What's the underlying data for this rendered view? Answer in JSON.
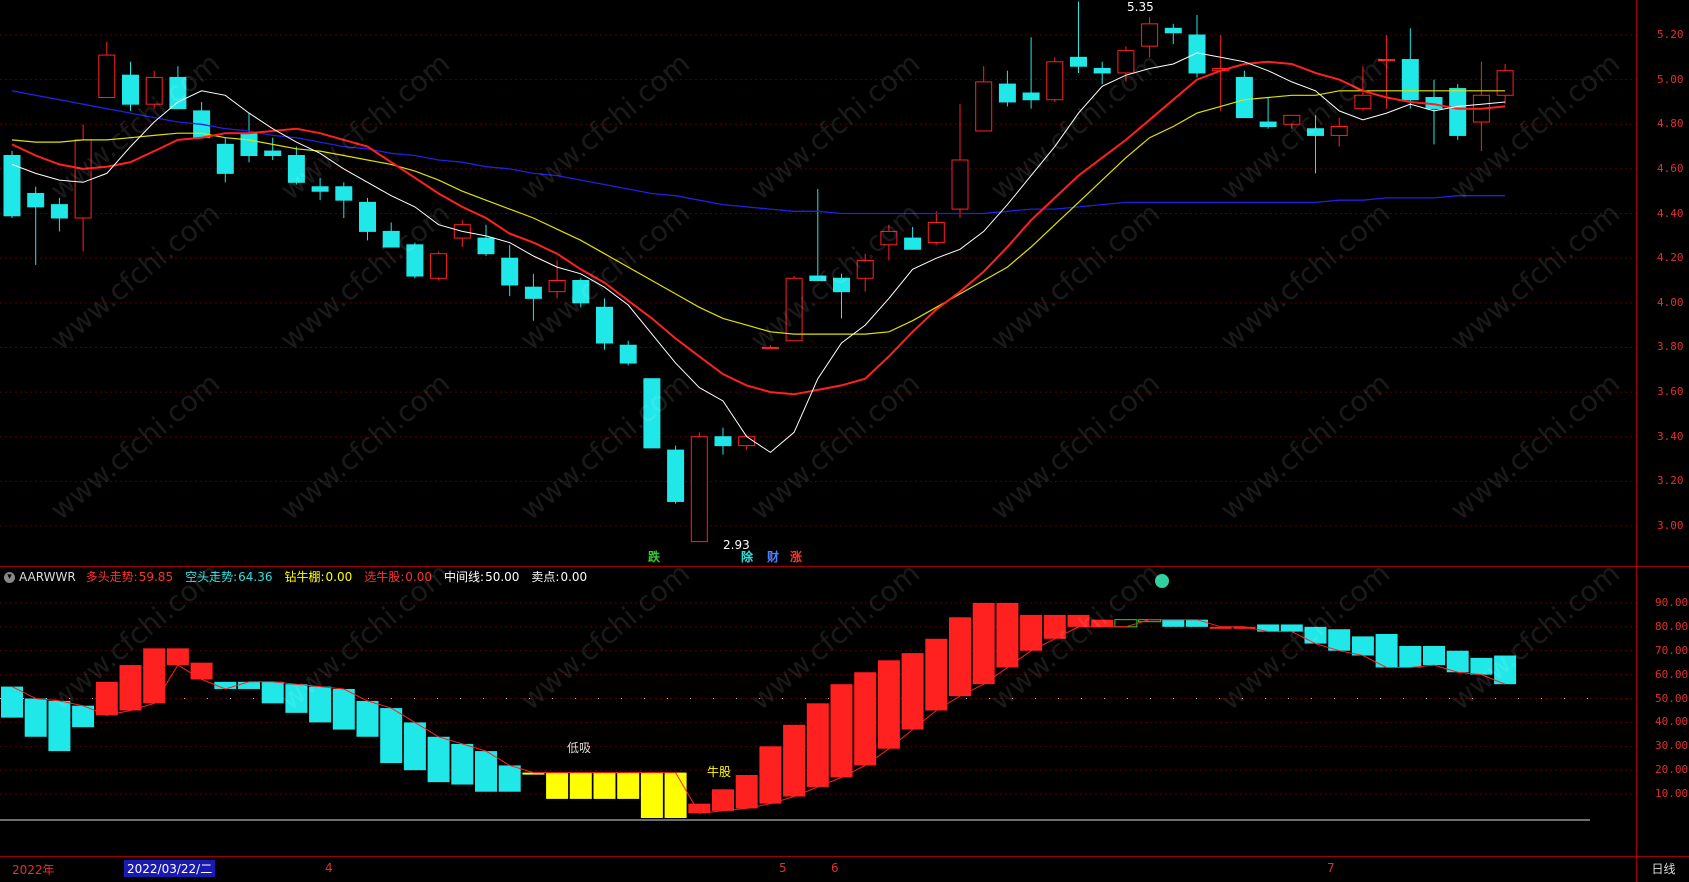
{
  "indicator": {
    "name": "AARWWR",
    "fields": [
      {
        "label": "多头走势:",
        "value": "59.85",
        "color": "#ff3030"
      },
      {
        "label": "空头走势:",
        "value": "64.36",
        "color": "#30e0e0"
      },
      {
        "label": "钻牛棚:",
        "value": "0.00",
        "color": "#ffff00"
      },
      {
        "label": "选牛股:",
        "value": "0.00",
        "color": "#ff3030"
      },
      {
        "label": "中间线:",
        "value": "50.00",
        "color": "#ffffff"
      },
      {
        "label": "卖点:",
        "value": "0.00",
        "color": "#ffffff"
      }
    ],
    "notes": {
      "low_buy": "低吸",
      "bull_stock": "牛股"
    }
  },
  "price_axis": [
    "5.20",
    "5.00",
    "4.80",
    "4.60",
    "4.40",
    "4.20",
    "4.00",
    "3.80",
    "3.60",
    "3.40",
    "3.20",
    "3.00"
  ],
  "indicator_axis": [
    "90.00",
    "80.00",
    "70.00",
    "60.00",
    "50.00",
    "40.00",
    "30.00",
    "20.00",
    "10.00"
  ],
  "high_label": "5.35",
  "low_label": "2.93",
  "markers": [
    {
      "text": "跌",
      "color": "#30d030"
    },
    {
      "text": "除",
      "color": "#30e0e0"
    },
    {
      "text": "财",
      "color": "#5080ff"
    },
    {
      "text": "涨",
      "color": "#ff3030"
    }
  ],
  "time_axis": {
    "labels": [
      "2022年",
      "4",
      "5",
      "6",
      "7"
    ],
    "cursor_date": "2022/03/22/二",
    "period": "日线"
  },
  "watermark": "www.cfchi.com",
  "colors": {
    "up": "#ff2020",
    "down": "#20e8e8",
    "ma5": "#ffffff",
    "ma10": "#ff2020",
    "ma20": "#e0e000",
    "ma60": "#2020e0",
    "yellow_bar": "#ffff00"
  },
  "chart_data": {
    "type": "candlestick",
    "candles": [
      [
        4.66,
        4.39,
        4.68,
        4.38
      ],
      [
        4.49,
        4.43,
        4.52,
        4.17
      ],
      [
        4.44,
        4.38,
        4.47,
        4.32
      ],
      [
        4.38,
        4.73,
        4.8,
        4.23
      ],
      [
        4.92,
        5.11,
        5.17,
        4.92
      ],
      [
        5.02,
        4.89,
        5.08,
        4.86
      ],
      [
        4.89,
        5.01,
        5.04,
        4.87
      ],
      [
        5.01,
        4.87,
        5.06,
        4.87
      ],
      [
        4.86,
        4.74,
        4.9,
        4.74
      ],
      [
        4.71,
        4.58,
        4.74,
        4.54
      ],
      [
        4.76,
        4.66,
        4.85,
        4.63
      ],
      [
        4.68,
        4.66,
        4.74,
        4.64
      ],
      [
        4.66,
        4.54,
        4.7,
        4.53
      ],
      [
        4.52,
        4.5,
        4.56,
        4.46
      ],
      [
        4.52,
        4.46,
        4.54,
        4.38
      ],
      [
        4.45,
        4.32,
        4.47,
        4.28
      ],
      [
        4.32,
        4.25,
        4.36,
        4.25
      ],
      [
        4.26,
        4.12,
        4.27,
        4.11
      ],
      [
        4.11,
        4.22,
        4.23,
        4.1
      ],
      [
        4.29,
        4.35,
        4.37,
        4.25
      ],
      [
        4.29,
        4.22,
        4.35,
        4.21
      ],
      [
        4.2,
        4.08,
        4.26,
        4.03
      ],
      [
        4.07,
        4.02,
        4.13,
        3.92
      ],
      [
        4.05,
        4.1,
        4.19,
        4.02
      ],
      [
        4.1,
        4.0,
        4.11,
        3.98
      ],
      [
        3.98,
        3.82,
        4.02,
        3.79
      ],
      [
        3.81,
        3.73,
        3.83,
        3.72
      ],
      [
        3.66,
        3.35,
        3.66,
        3.35
      ],
      [
        3.34,
        3.11,
        3.36,
        3.1
      ],
      [
        2.93,
        3.4,
        3.42,
        2.93
      ],
      [
        3.4,
        3.36,
        3.44,
        3.32
      ],
      [
        3.36,
        3.4,
        3.41,
        3.34
      ],
      [
        3.8,
        3.8,
        3.81,
        3.8
      ],
      [
        3.83,
        4.11,
        4.12,
        3.83
      ],
      [
        4.12,
        4.1,
        4.51,
        4.1
      ],
      [
        4.11,
        4.05,
        4.13,
        3.93
      ],
      [
        4.11,
        4.19,
        4.22,
        4.05
      ],
      [
        4.26,
        4.32,
        4.35,
        4.19
      ],
      [
        4.29,
        4.24,
        4.34,
        4.25
      ],
      [
        4.27,
        4.36,
        4.41,
        4.26
      ],
      [
        4.42,
        4.64,
        4.89,
        4.38
      ],
      [
        4.77,
        4.99,
        5.06,
        4.79
      ],
      [
        4.98,
        4.9,
        5.04,
        4.88
      ],
      [
        4.94,
        4.91,
        5.19,
        4.87
      ],
      [
        4.91,
        5.08,
        5.1,
        4.9
      ],
      [
        5.1,
        5.06,
        5.35,
        5.03
      ],
      [
        5.05,
        5.03,
        5.08,
        4.98
      ],
      [
        5.03,
        5.13,
        5.15,
        4.99
      ],
      [
        5.15,
        5.25,
        5.28,
        5.1
      ],
      [
        5.23,
        5.21,
        5.25,
        5.16
      ],
      [
        5.2,
        5.03,
        5.29,
        5.01
      ],
      [
        5.04,
        5.05,
        5.2,
        4.86
      ],
      [
        5.01,
        4.83,
        5.04,
        4.83
      ],
      [
        4.81,
        4.79,
        4.92,
        4.78
      ],
      [
        4.8,
        4.84,
        4.84,
        4.78
      ],
      [
        4.78,
        4.75,
        4.84,
        4.58
      ],
      [
        4.75,
        4.79,
        4.83,
        4.7
      ],
      [
        4.87,
        4.93,
        5.06,
        4.86
      ],
      [
        5.09,
        5.09,
        5.2,
        4.87
      ],
      [
        5.09,
        4.91,
        5.23,
        4.87
      ],
      [
        4.92,
        4.87,
        5.0,
        4.71
      ],
      [
        4.96,
        4.75,
        4.98,
        4.73
      ],
      [
        4.81,
        4.93,
        5.08,
        4.68
      ],
      [
        4.93,
        5.04,
        5.07,
        4.89
      ]
    ],
    "ma5": [
      4.62,
      4.58,
      4.55,
      4.54,
      4.58,
      4.7,
      4.81,
      4.9,
      4.95,
      4.93,
      4.85,
      4.78,
      4.72,
      4.67,
      4.6,
      4.54,
      4.48,
      4.43,
      4.35,
      4.32,
      4.3,
      4.27,
      4.21,
      4.16,
      4.13,
      4.07,
      3.99,
      3.86,
      3.73,
      3.62,
      3.56,
      3.4,
      3.33,
      3.42,
      3.66,
      3.82,
      3.9,
      4.02,
      4.15,
      4.2,
      4.24,
      4.32,
      4.44,
      4.57,
      4.7,
      4.85,
      4.97,
      5.02,
      5.05,
      5.07,
      5.12,
      5.1,
      5.08,
      5.04,
      4.99,
      4.95,
      4.86,
      4.82,
      4.85,
      4.89,
      4.86,
      4.88,
      4.89,
      4.9
    ],
    "ma10": [
      4.71,
      4.66,
      4.62,
      4.6,
      4.61,
      4.63,
      4.68,
      4.73,
      4.74,
      4.76,
      4.76,
      4.77,
      4.78,
      4.76,
      4.73,
      4.7,
      4.63,
      4.56,
      4.49,
      4.43,
      4.38,
      4.31,
      4.27,
      4.22,
      4.15,
      4.09,
      4.01,
      3.93,
      3.84,
      3.76,
      3.68,
      3.63,
      3.6,
      3.59,
      3.61,
      3.63,
      3.66,
      3.76,
      3.87,
      3.97,
      4.05,
      4.14,
      4.25,
      4.37,
      4.47,
      4.57,
      4.65,
      4.73,
      4.82,
      4.91,
      5.0,
      5.04,
      5.07,
      5.08,
      5.07,
      5.03,
      5.0,
      4.95,
      4.92,
      4.9,
      4.89,
      4.87,
      4.87,
      4.88
    ],
    "ma20": [
      4.73,
      4.72,
      4.72,
      4.73,
      4.73,
      4.74,
      4.75,
      4.76,
      4.76,
      4.74,
      4.73,
      4.71,
      4.69,
      4.68,
      4.66,
      4.64,
      4.62,
      4.59,
      4.55,
      4.5,
      4.46,
      4.42,
      4.38,
      4.33,
      4.28,
      4.22,
      4.16,
      4.1,
      4.04,
      3.98,
      3.93,
      3.9,
      3.87,
      3.86,
      3.86,
      3.86,
      3.86,
      3.87,
      3.92,
      3.98,
      4.04,
      4.1,
      4.16,
      4.25,
      4.35,
      4.45,
      4.55,
      4.65,
      4.74,
      4.79,
      4.85,
      4.88,
      4.91,
      4.92,
      4.93,
      4.93,
      4.95,
      4.95,
      4.95,
      4.95,
      4.95,
      4.95,
      4.95,
      4.95
    ],
    "ma60": [
      4.95,
      4.93,
      4.91,
      4.89,
      4.87,
      4.85,
      4.83,
      4.81,
      4.8,
      4.78,
      4.77,
      4.75,
      4.74,
      4.72,
      4.7,
      4.69,
      4.67,
      4.66,
      4.64,
      4.63,
      4.61,
      4.6,
      4.58,
      4.57,
      4.55,
      4.53,
      4.51,
      4.49,
      4.48,
      4.46,
      4.44,
      4.43,
      4.42,
      4.41,
      4.41,
      4.4,
      4.4,
      4.4,
      4.4,
      4.4,
      4.4,
      4.4,
      4.41,
      4.42,
      4.42,
      4.43,
      4.44,
      4.45,
      4.45,
      4.45,
      4.45,
      4.45,
      4.45,
      4.45,
      4.45,
      4.45,
      4.46,
      4.46,
      4.47,
      4.47,
      4.47,
      4.48,
      4.48,
      4.48
    ],
    "ind_bars": [
      [
        55,
        42,
        "c"
      ],
      [
        50,
        34,
        "c"
      ],
      [
        49,
        28,
        "c"
      ],
      [
        47,
        38,
        "c"
      ],
      [
        43,
        57,
        "r"
      ],
      [
        45,
        64,
        "r"
      ],
      [
        48,
        71,
        "r"
      ],
      [
        64,
        71,
        "r"
      ],
      [
        58,
        65,
        "r"
      ],
      [
        54,
        57,
        "c"
      ],
      [
        57,
        54,
        "c"
      ],
      [
        57,
        48,
        "c"
      ],
      [
        56,
        44,
        "c"
      ],
      [
        55,
        40,
        "c"
      ],
      [
        54,
        37,
        "c"
      ],
      [
        49,
        34,
        "c"
      ],
      [
        46,
        23,
        "c"
      ],
      [
        40,
        20,
        "c"
      ],
      [
        34,
        15,
        "c"
      ],
      [
        31,
        14,
        "c"
      ],
      [
        28,
        11,
        "c"
      ],
      [
        22,
        11,
        "c"
      ],
      [
        19,
        19,
        "y"
      ],
      [
        19,
        8,
        "y"
      ],
      [
        19,
        8,
        "y"
      ],
      [
        19,
        8,
        "y"
      ],
      [
        19,
        8,
        "y"
      ],
      [
        19,
        0,
        "y"
      ],
      [
        19,
        0,
        "y"
      ],
      [
        2,
        6,
        "r"
      ],
      [
        3,
        12,
        "r"
      ],
      [
        4,
        18,
        "r"
      ],
      [
        6,
        30,
        "r"
      ],
      [
        9,
        39,
        "r"
      ],
      [
        13,
        48,
        "r"
      ],
      [
        17,
        56,
        "r"
      ],
      [
        22,
        61,
        "r"
      ],
      [
        29,
        66,
        "r"
      ],
      [
        37,
        69,
        "r"
      ],
      [
        45,
        75,
        "r"
      ],
      [
        51,
        84,
        "r"
      ],
      [
        56,
        90,
        "r"
      ],
      [
        63,
        90,
        "r"
      ],
      [
        70,
        85,
        "r"
      ],
      [
        75,
        85,
        "r"
      ],
      [
        80,
        85,
        "r"
      ],
      [
        80,
        83,
        "r"
      ],
      [
        80,
        83,
        "g"
      ],
      [
        83,
        83,
        "g"
      ],
      [
        83,
        80,
        "c"
      ],
      [
        83,
        80,
        "c"
      ],
      [
        80,
        80,
        "r"
      ],
      [
        80,
        80,
        "r"
      ],
      [
        78,
        81,
        "c"
      ],
      [
        78,
        81,
        "c"
      ],
      [
        73,
        80,
        "c"
      ],
      [
        70,
        79,
        "c"
      ],
      [
        68,
        76,
        "c"
      ],
      [
        63,
        77,
        "c"
      ],
      [
        63,
        72,
        "c"
      ],
      [
        64,
        72,
        "c"
      ],
      [
        61,
        70,
        "c"
      ],
      [
        60,
        67,
        "c"
      ],
      [
        56,
        68,
        "c"
      ]
    ],
    "ind_line": [
      55,
      50,
      49,
      47,
      43,
      45,
      48,
      64,
      58,
      54,
      57,
      57,
      56,
      55,
      54,
      49,
      46,
      40,
      34,
      31,
      28,
      22,
      19,
      19,
      19,
      19,
      19,
      19,
      19,
      2,
      3,
      4,
      6,
      9,
      13,
      17,
      22,
      29,
      37,
      45,
      51,
      56,
      63,
      70,
      75,
      80,
      80,
      80,
      83,
      83,
      83,
      80,
      80,
      78,
      78,
      73,
      70,
      68,
      63,
      63,
      64,
      61,
      60,
      56
    ],
    "ylim_price": [
      2.85,
      5.35
    ],
    "ylim_ind": [
      0,
      100
    ]
  }
}
